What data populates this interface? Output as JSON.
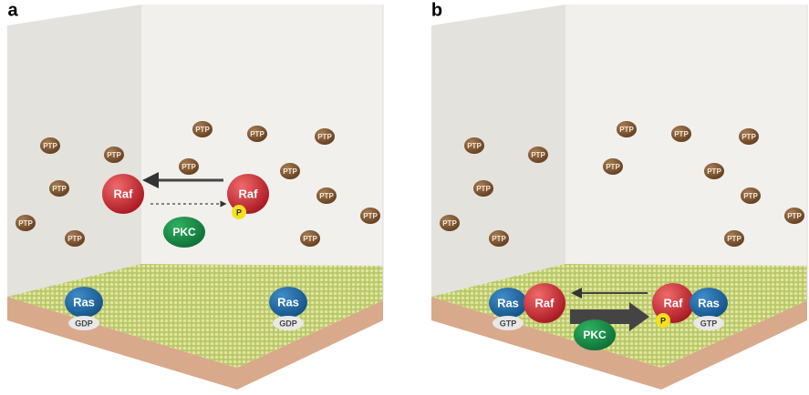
{
  "panels": [
    {
      "label": "a",
      "ptp": [
        "PTP",
        "PTP",
        "PTP",
        "PTP",
        "PTP",
        "PTP",
        "PTP",
        "PTP",
        "PTP",
        "PTP",
        "PTP",
        "PTP",
        "PTP"
      ],
      "raf": [
        "Raf",
        "Raf"
      ],
      "phospho": "P",
      "pkc": "PKC",
      "ras": [
        "Ras",
        "Ras"
      ],
      "nucleotide": [
        "GDP",
        "GDP"
      ]
    },
    {
      "label": "b",
      "ptp": [
        "PTP",
        "PTP",
        "PTP",
        "PTP",
        "PTP",
        "PTP",
        "PTP",
        "PTP",
        "PTP",
        "PTP",
        "PTP",
        "PTP",
        "PTP"
      ],
      "raf": [
        "Raf",
        "Raf"
      ],
      "phospho": "P",
      "pkc": "PKC",
      "ras": [
        "Ras",
        "Ras"
      ],
      "nucleotide": [
        "GTP",
        "GTP"
      ]
    }
  ]
}
